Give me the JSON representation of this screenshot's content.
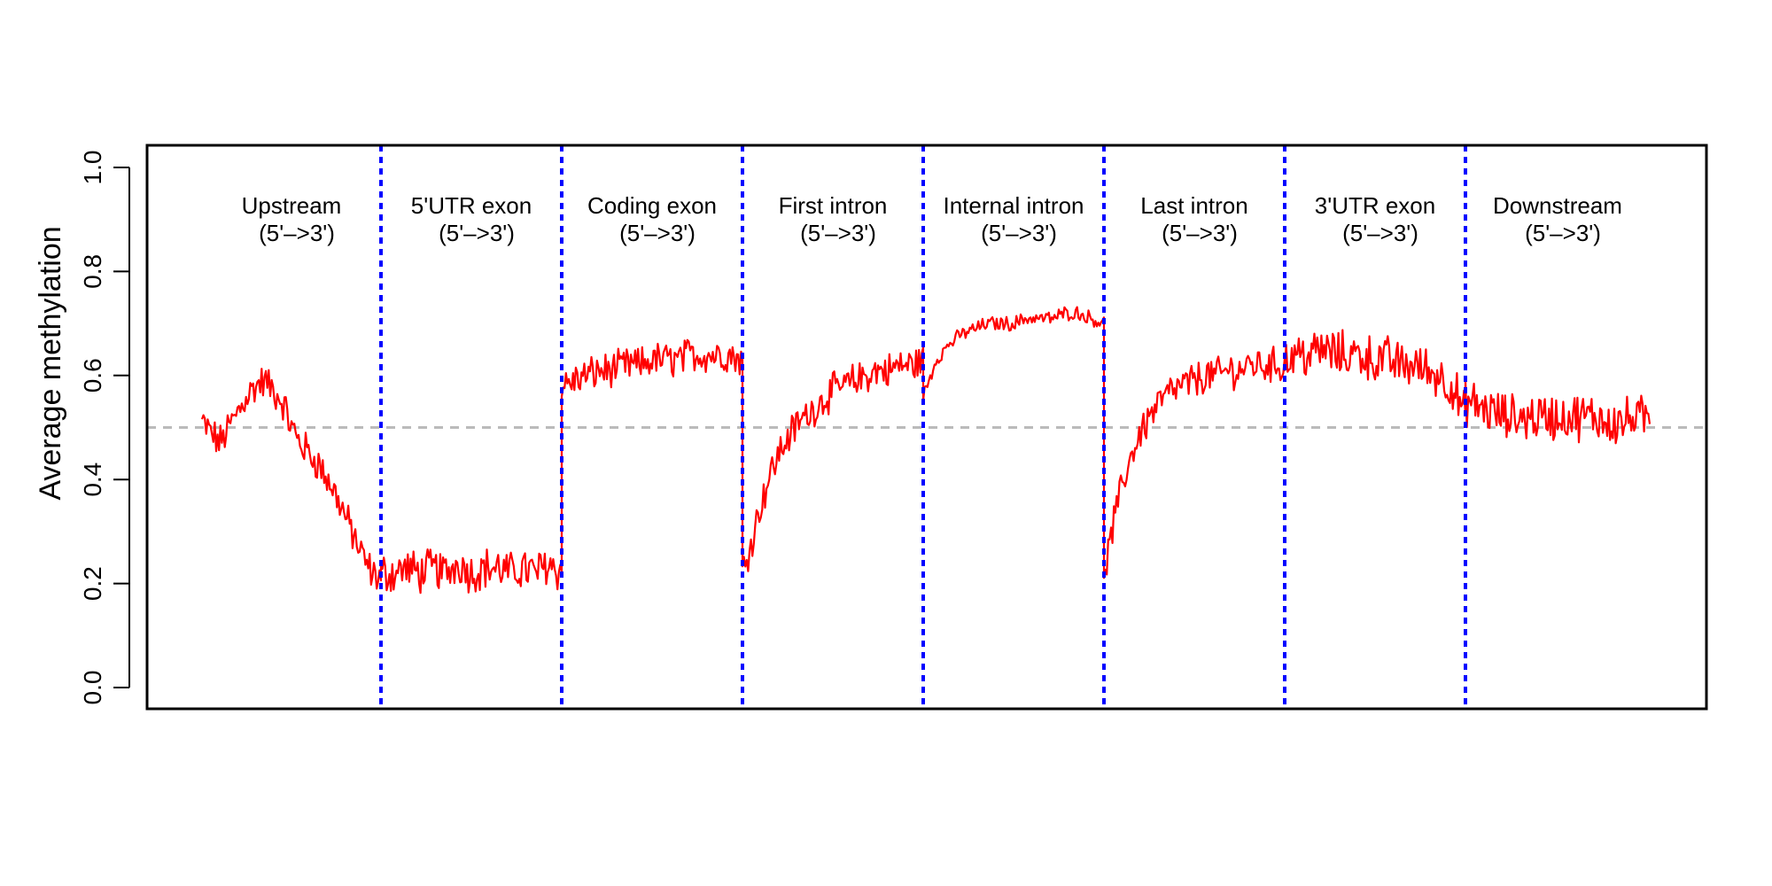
{
  "chart_data": {
    "type": "line",
    "title": "",
    "xlabel": "",
    "ylabel": "Average methylation",
    "ylim": [
      0,
      1
    ],
    "yticks": [
      "0.0",
      "0.2",
      "0.4",
      "0.6",
      "0.8",
      "1.0"
    ],
    "grid": false,
    "reference_line": {
      "y": 0.5,
      "color": "#bbbbbb",
      "style": "dashed"
    },
    "divider_color": "#0000ff",
    "line_color": "#ff0000",
    "regions": [
      {
        "name": "Upstream",
        "direction": "(5'–>3')",
        "profile": [
          0.51,
          0.49,
          0.47,
          0.5,
          0.53,
          0.56,
          0.58,
          0.59,
          0.57,
          0.55,
          0.5,
          0.47,
          0.45,
          0.43,
          0.4,
          0.37,
          0.33,
          0.29,
          0.25,
          0.22,
          0.21
        ],
        "noise": 0.03
      },
      {
        "name": "5'UTR exon",
        "direction": "(5'–>3')",
        "profile": [
          0.22,
          0.22,
          0.23,
          0.22,
          0.23,
          0.22,
          0.24,
          0.22,
          0.23,
          0.23,
          0.22,
          0.23,
          0.22,
          0.24,
          0.22
        ],
        "noise": 0.035
      },
      {
        "name": "Coding exon",
        "direction": "(5'–>3')",
        "profile": [
          0.58,
          0.59,
          0.6,
          0.61,
          0.61,
          0.62,
          0.62,
          0.63,
          0.63,
          0.63,
          0.64,
          0.64,
          0.64,
          0.64,
          0.63
        ],
        "noise": 0.03
      },
      {
        "name": "First intron",
        "direction": "(5'–>3')",
        "profile": [
          0.22,
          0.3,
          0.38,
          0.44,
          0.48,
          0.51,
          0.53,
          0.55,
          0.57,
          0.58,
          0.59,
          0.6,
          0.61,
          0.61,
          0.62,
          0.62,
          0.63
        ],
        "noise": 0.03
      },
      {
        "name": "Internal intron",
        "direction": "(5'–>3')",
        "profile": [
          0.56,
          0.63,
          0.66,
          0.68,
          0.69,
          0.7,
          0.7,
          0.7,
          0.71,
          0.71,
          0.71,
          0.72,
          0.72,
          0.71,
          0.7
        ],
        "noise": 0.012
      },
      {
        "name": "Last intron",
        "direction": "(5'–>3')",
        "profile": [
          0.22,
          0.33,
          0.42,
          0.48,
          0.52,
          0.55,
          0.57,
          0.58,
          0.59,
          0.6,
          0.6,
          0.61,
          0.61,
          0.62,
          0.62,
          0.62,
          0.62
        ],
        "noise": 0.03
      },
      {
        "name": "3'UTR exon",
        "direction": "(5'–>3')",
        "profile": [
          0.63,
          0.64,
          0.64,
          0.65,
          0.64,
          0.64,
          0.64,
          0.63,
          0.63,
          0.62,
          0.62,
          0.61,
          0.6,
          0.58,
          0.52
        ],
        "noise": 0.04
      },
      {
        "name": "Downstream",
        "direction": "(5'–>3')",
        "profile": [
          0.55,
          0.54,
          0.53,
          0.52,
          0.52,
          0.52,
          0.52,
          0.52,
          0.52,
          0.52,
          0.52,
          0.51,
          0.51,
          0.52,
          0.51
        ],
        "noise": 0.04
      }
    ]
  }
}
